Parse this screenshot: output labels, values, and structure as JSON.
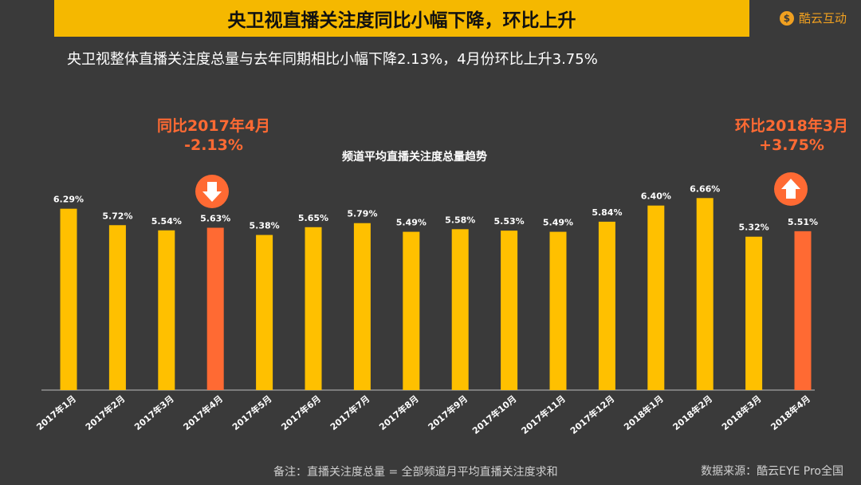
{
  "header": {
    "title": "央卫视直播关注度同比小幅下降，环比上升",
    "logo_text": "酷云互动",
    "logo_mark": "$"
  },
  "subtitle": "央卫视整体直播关注度总量与去年同期相比小幅下降2.13%，4月份环比上升3.75%",
  "callouts": {
    "left": {
      "line1": "同比2017年4月",
      "line2": "-2.13%",
      "icon": "arrow-down-icon"
    },
    "right": {
      "line1": "环比2018年3月",
      "line2": "+3.75%",
      "icon": "arrow-up-icon"
    }
  },
  "footnote": "备注：直播关注度总量 = 全部频道月平均直播关注度求和",
  "source": "数据来源：酷云EYE Pro全国",
  "colors": {
    "bar": "#ffc000",
    "highlight": "#ff6a33",
    "title_bg": "#f5b800",
    "background": "#3a3a3a"
  },
  "chart_data": {
    "type": "bar",
    "title": "频道平均直播关注度总量趋势",
    "categories": [
      "2017年1月",
      "2017年2月",
      "2017年3月",
      "2017年4月",
      "2017年5月",
      "2017年6月",
      "2017年7月",
      "2017年8月",
      "2017年9月",
      "2017年10月",
      "2017年11月",
      "2017年12月",
      "2018年1月",
      "2018年2月",
      "2018年3月",
      "2018年4月"
    ],
    "values": [
      6.29,
      5.72,
      5.54,
      5.63,
      5.38,
      5.65,
      5.79,
      5.49,
      5.58,
      5.53,
      5.49,
      5.84,
      6.4,
      6.66,
      5.32,
      5.51
    ],
    "value_labels": [
      "6.29%",
      "5.72%",
      "5.54%",
      "5.63%",
      "5.38%",
      "5.65%",
      "5.79%",
      "5.49%",
      "5.58%",
      "5.53%",
      "5.49%",
      "5.84%",
      "6.40%",
      "6.66%",
      "5.32%",
      "5.51%"
    ],
    "highlighted": [
      "2017年4月",
      "2018年4月"
    ],
    "ylim": [
      0,
      7
    ],
    "grid": false,
    "legend": "none",
    "xlabel": "",
    "ylabel": ""
  }
}
